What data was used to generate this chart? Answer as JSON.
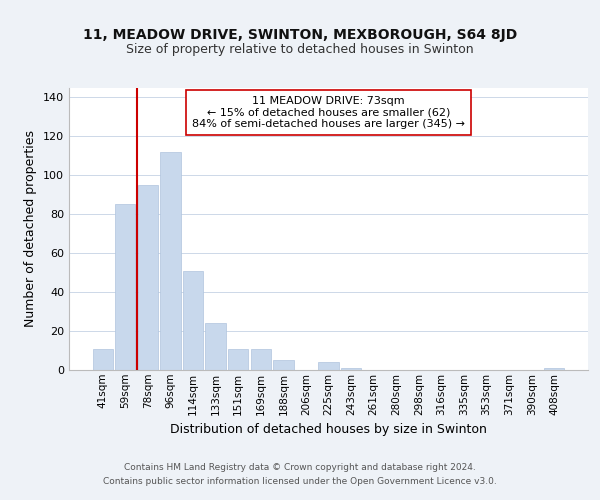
{
  "title1": "11, MEADOW DRIVE, SWINTON, MEXBOROUGH, S64 8JD",
  "title2": "Size of property relative to detached houses in Swinton",
  "xlabel": "Distribution of detached houses by size in Swinton",
  "ylabel": "Number of detached properties",
  "bar_labels": [
    "41sqm",
    "59sqm",
    "78sqm",
    "96sqm",
    "114sqm",
    "133sqm",
    "151sqm",
    "169sqm",
    "188sqm",
    "206sqm",
    "225sqm",
    "243sqm",
    "261sqm",
    "280sqm",
    "298sqm",
    "316sqm",
    "335sqm",
    "353sqm",
    "371sqm",
    "390sqm",
    "408sqm"
  ],
  "bar_values": [
    11,
    85,
    95,
    112,
    51,
    24,
    11,
    11,
    5,
    0,
    4,
    1,
    0,
    0,
    0,
    0,
    0,
    0,
    0,
    0,
    1
  ],
  "bar_color": "#c8d8ec",
  "bar_edge_color": "#b0c4de",
  "annotation_line1": "11 MEADOW DRIVE: 73sqm",
  "annotation_line2": "← 15% of detached houses are smaller (62)",
  "annotation_line3": "84% of semi-detached houses are larger (345) →",
  "vline_color": "#cc0000",
  "footer1": "Contains HM Land Registry data © Crown copyright and database right 2024.",
  "footer2": "Contains public sector information licensed under the Open Government Licence v3.0.",
  "ylim": [
    0,
    145
  ],
  "yticks": [
    0,
    20,
    40,
    60,
    80,
    100,
    120,
    140
  ],
  "background_color": "#eef2f7",
  "plot_bg_color": "#ffffff",
  "grid_color": "#cdd8e8"
}
